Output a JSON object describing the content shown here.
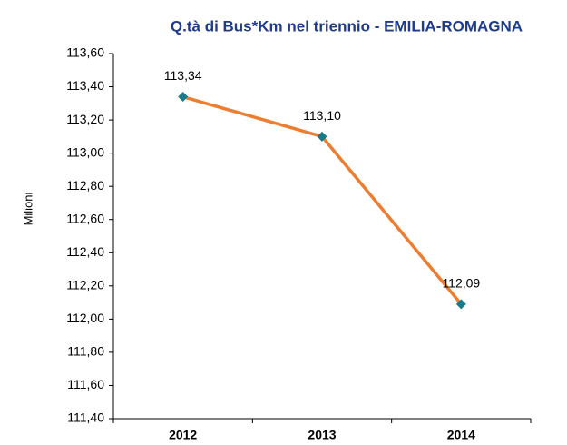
{
  "chart_data": {
    "type": "line",
    "title": "Q.tà di Bus*Km nel triennio - EMILIA-ROMAGNA",
    "y_label": "Milioni",
    "categories": [
      "2012",
      "2013",
      "2014"
    ],
    "values": [
      113.34,
      113.1,
      112.09
    ],
    "value_labels": [
      "113,34",
      "113,10",
      "112,09"
    ],
    "color": "#ed7d31",
    "marker_color": "#1a7a8a",
    "ylim": [
      111.4,
      113.6
    ],
    "yticks": [
      {
        "value": 111.4,
        "label": "111,40"
      },
      {
        "value": 111.6,
        "label": "111,60"
      },
      {
        "value": 111.8,
        "label": "111,80"
      },
      {
        "value": 112.0,
        "label": "112,00"
      },
      {
        "value": 112.2,
        "label": "112,20"
      },
      {
        "value": 112.4,
        "label": "112,40"
      },
      {
        "value": 112.6,
        "label": "112,60"
      },
      {
        "value": 112.8,
        "label": "112,80"
      },
      {
        "value": 113.0,
        "label": "113,00"
      },
      {
        "value": 113.2,
        "label": "113,20"
      },
      {
        "value": 113.4,
        "label": "113,40"
      },
      {
        "value": 113.6,
        "label": "113,60"
      }
    ],
    "grid": false
  }
}
